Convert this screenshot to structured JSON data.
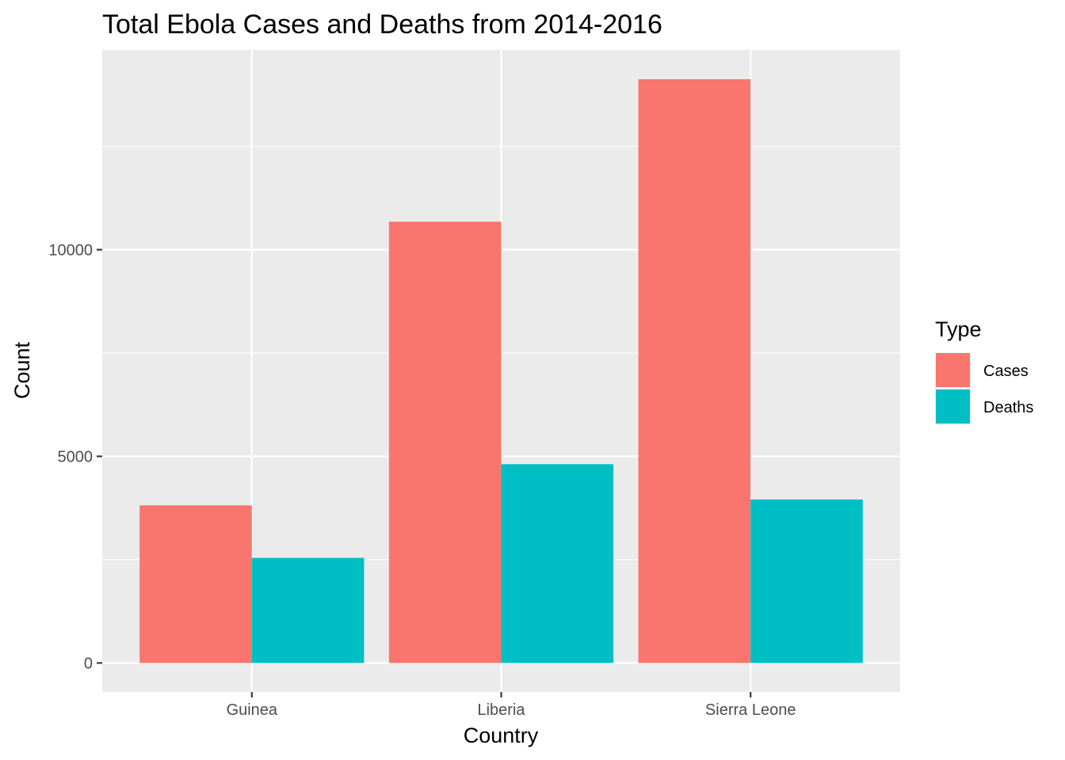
{
  "chart_data": {
    "type": "bar",
    "title": "Total Ebola Cases and Deaths from 2014-2016",
    "xlabel": "Country",
    "ylabel": "Count",
    "categories": [
      "Guinea",
      "Liberia",
      "Sierra Leone"
    ],
    "series": [
      {
        "name": "Cases",
        "color": "#F8766D",
        "values": [
          3814,
          10678,
          14124
        ]
      },
      {
        "name": "Deaths",
        "color": "#00BFC4",
        "values": [
          2544,
          4810,
          3956
        ]
      }
    ],
    "ylim": [
      -700,
      14835
    ],
    "yticks": [
      0,
      5000,
      10000
    ],
    "yticks_labels": [
      "0",
      "5000",
      "10000"
    ],
    "grid": true,
    "legend": {
      "title": "Type",
      "position": "right"
    },
    "panel_background": "#EBEBEB",
    "grid_color": "#FFFFFF"
  }
}
